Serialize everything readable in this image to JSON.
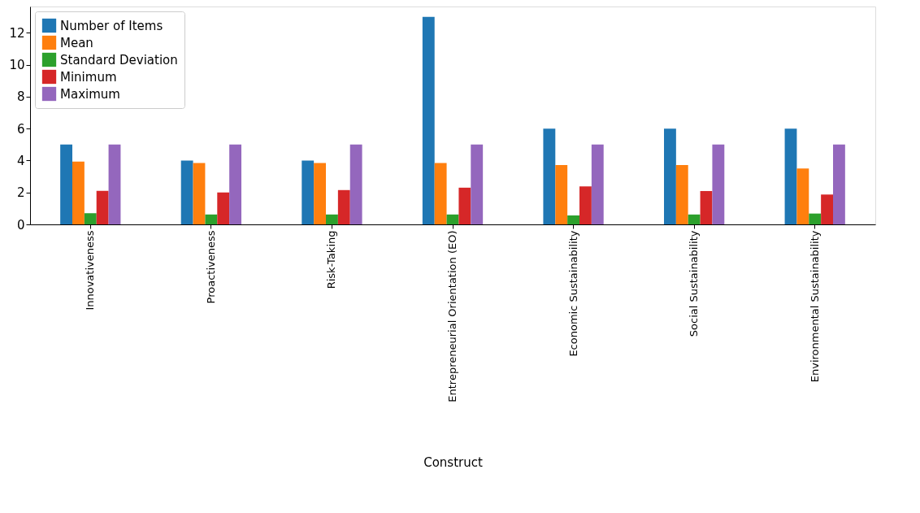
{
  "chart_data": {
    "type": "bar",
    "xlabel": "Construct",
    "categories": [
      "Innovativeness",
      "Proactiveness",
      "Risk-Taking",
      "Entrepreneurial Orientation (EO)",
      "Economic Sustainability",
      "Social Sustainability",
      "Environmental Sustainability"
    ],
    "series": [
      {
        "name": "Number of Items",
        "color": "#1f77b4",
        "values": [
          5,
          4,
          4,
          13,
          6,
          6,
          6
        ]
      },
      {
        "name": "Mean",
        "color": "#ff7f0e",
        "values": [
          3.93,
          3.85,
          3.85,
          3.85,
          3.72,
          3.72,
          3.5
        ]
      },
      {
        "name": "Standard Deviation",
        "color": "#2ca02c",
        "values": [
          0.7,
          0.62,
          0.62,
          0.62,
          0.56,
          0.62,
          0.68
        ]
      },
      {
        "name": "Minimum",
        "color": "#d62728",
        "values": [
          2.1,
          2.0,
          2.15,
          2.3,
          2.38,
          2.09,
          1.87
        ]
      },
      {
        "name": "Maximum",
        "color": "#9467bd",
        "values": [
          5,
          5,
          5,
          5,
          5,
          5,
          5
        ]
      }
    ],
    "ylim": [
      0,
      13.65
    ],
    "yticks": [
      0,
      2,
      4,
      6,
      8,
      10,
      12
    ],
    "grid": false,
    "legend": "top left"
  }
}
